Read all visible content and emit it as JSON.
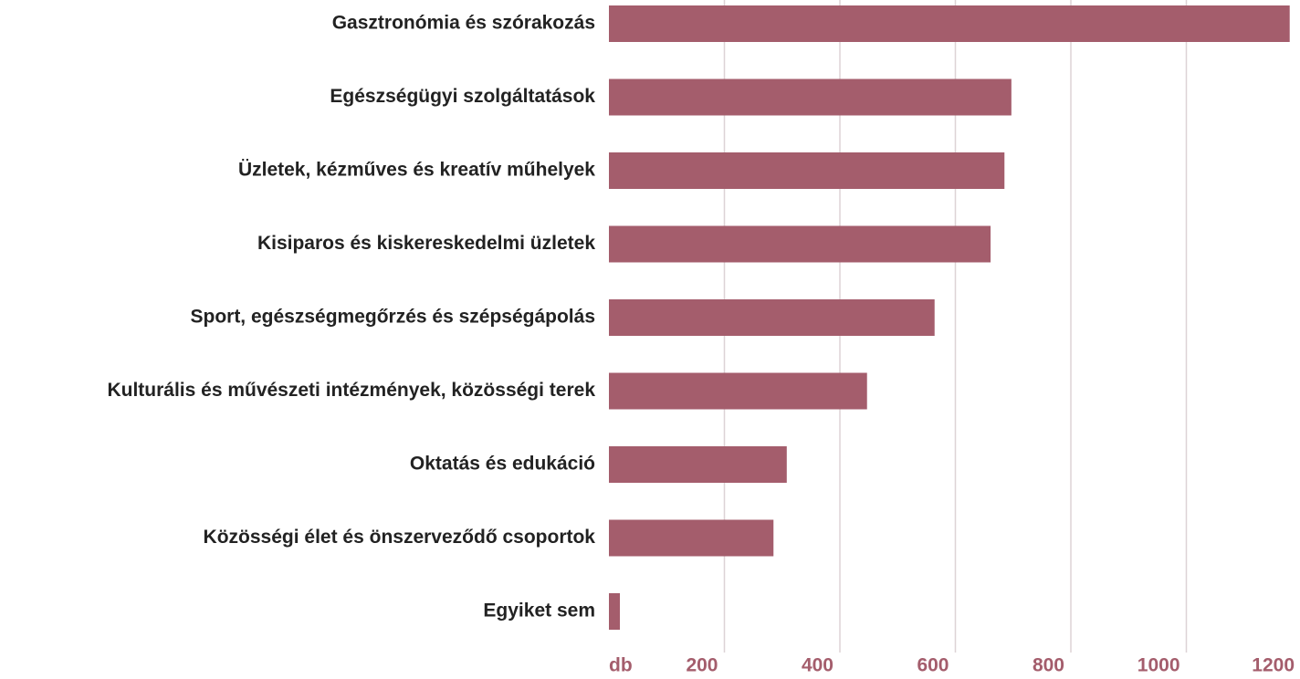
{
  "chart_data": {
    "type": "bar",
    "orientation": "horizontal",
    "categories": [
      "Gasztronómia és szórakozás",
      "Egészségügyi szolgáltatások",
      "Üzletek, kézműves és kreatív műhelyek",
      "Kisiparos és kiskereskedelmi üzletek",
      "Sport, egészségmegőrzés és szépségápolás",
      "Kulturális és művészeti intézmények, közösségi terek",
      "Oktatás és edukáció",
      "Közösségi élet és önszerveződő csoportok",
      "Egyiket sem"
    ],
    "values": [
      1179,
      697,
      685,
      661,
      564,
      447,
      308,
      285,
      19
    ],
    "color": "#a45d6c",
    "xlim": [
      0,
      1200
    ],
    "xticks": [
      {
        "value": 0,
        "label": "db"
      },
      200,
      400,
      600,
      800,
      1000,
      1200
    ],
    "grid": true
  }
}
